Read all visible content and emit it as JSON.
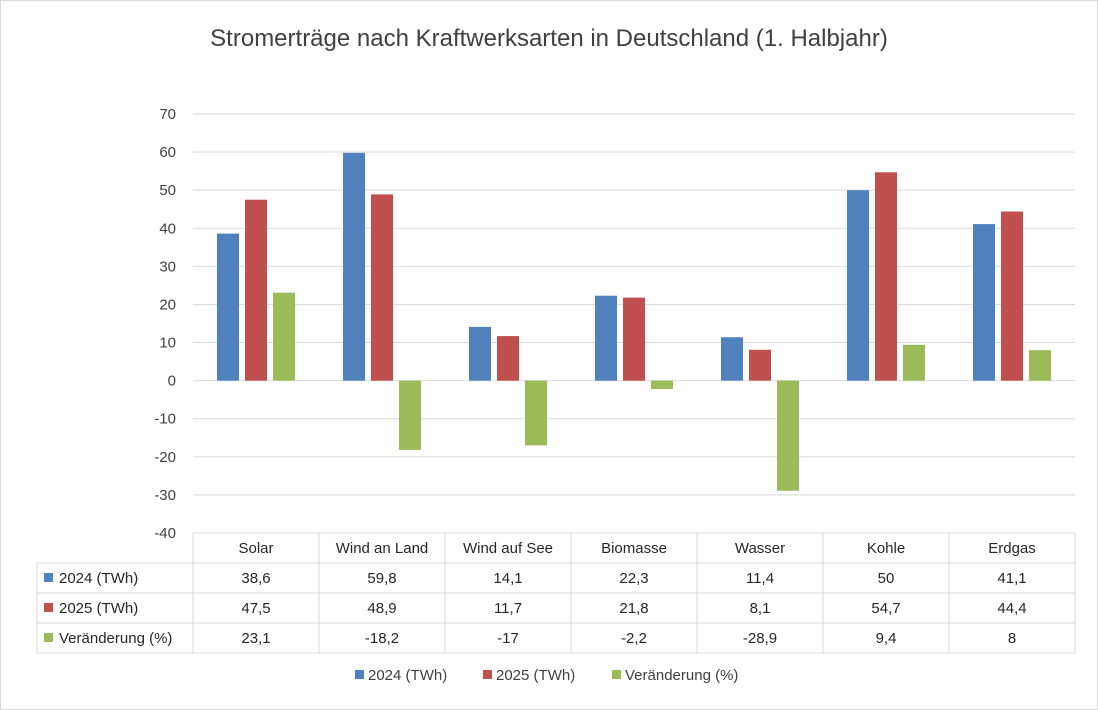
{
  "chart_data": {
    "type": "bar",
    "title": "Stromerträge nach Kraftwerksarten in Deutschland (1. Halbjahr)",
    "categories": [
      "Solar",
      "Wind an Land",
      "Wind auf See",
      "Biomasse",
      "Wasser",
      "Kohle",
      "Erdgas"
    ],
    "series": [
      {
        "name": "2024 (TWh)",
        "color": "#4F81BD",
        "values": [
          38.6,
          59.8,
          14.1,
          22.3,
          11.4,
          50,
          41.1
        ],
        "labels": [
          "38,6",
          "59,8",
          "14,1",
          "22,3",
          "11,4",
          "50",
          "41,1"
        ]
      },
      {
        "name": "2025 (TWh)",
        "color": "#C0504D",
        "values": [
          47.5,
          48.9,
          11.7,
          21.8,
          8.1,
          54.7,
          44.4
        ],
        "labels": [
          "47,5",
          "48,9",
          "11,7",
          "21,8",
          "8,1",
          "54,7",
          "44,4"
        ]
      },
      {
        "name": "Veränderung (%)",
        "color": "#9BBB59",
        "values": [
          23.1,
          -18.2,
          -17,
          -2.2,
          -28.9,
          9.4,
          8
        ],
        "labels": [
          "23,1",
          "-18,2",
          "-17",
          "-2,2",
          "-28,9",
          "9,4",
          "8"
        ]
      }
    ],
    "ylim": [
      -40,
      70
    ],
    "yticks": [
      70,
      60,
      50,
      40,
      30,
      20,
      10,
      0,
      -10,
      -20,
      -30,
      -40
    ],
    "grid": true,
    "data_table": true,
    "legend": "bottom"
  }
}
